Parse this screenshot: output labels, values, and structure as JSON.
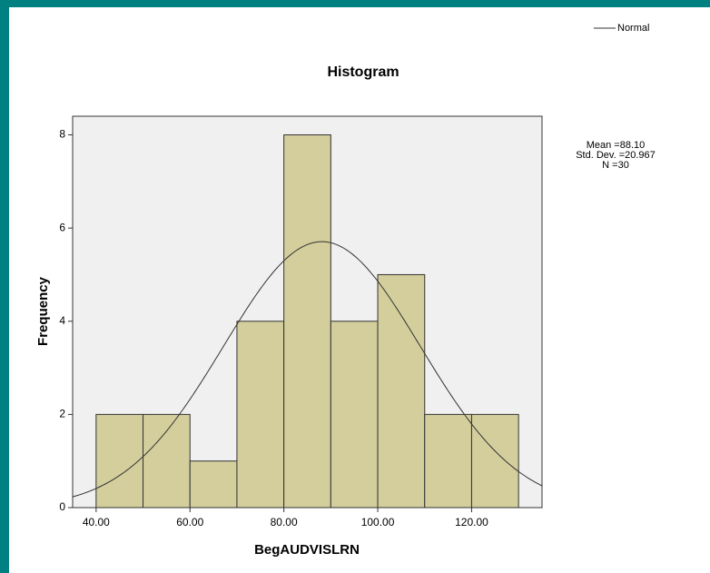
{
  "chart_data": {
    "type": "histogram",
    "title": "Histogram",
    "xlabel": "BegAUDVISLRN",
    "ylabel": "Frequency",
    "bins": [
      40,
      50,
      60,
      70,
      80,
      90,
      100,
      110,
      120,
      130
    ],
    "values": [
      2,
      2,
      1,
      4,
      8,
      4,
      5,
      2,
      2
    ],
    "color": "#d3ce9c",
    "xlim": [
      35,
      135
    ],
    "xticks": [
      {
        "value": 40,
        "label": "40.00"
      },
      {
        "value": 60,
        "label": "60.00"
      },
      {
        "value": 80,
        "label": "80.00"
      },
      {
        "value": 100,
        "label": "100.00"
      },
      {
        "value": 120,
        "label": "120.00"
      }
    ],
    "ylim": [
      0,
      8.4
    ],
    "yticks": [
      0,
      2,
      4,
      6,
      8
    ],
    "legend": {
      "name": "Normal",
      "corner": "top-right"
    },
    "mean": {
      "value": 88.1,
      "label": "Mean =88.10"
    },
    "std_dev": {
      "value": 20.967,
      "label": "Std. Dev. =20.967"
    },
    "n": {
      "value": 30,
      "label": "N =30"
    }
  }
}
